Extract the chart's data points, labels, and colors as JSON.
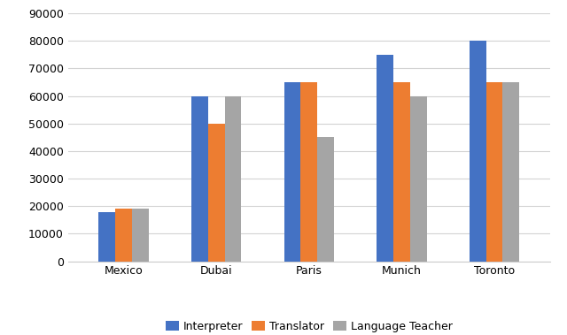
{
  "cities": [
    "Mexico",
    "Dubai",
    "Paris",
    "Munich",
    "Toronto"
  ],
  "interpreter": [
    18000,
    60000,
    65000,
    75000,
    80000
  ],
  "translator": [
    19000,
    50000,
    65000,
    65000,
    65000
  ],
  "language_teacher": [
    19000,
    60000,
    45000,
    60000,
    65000
  ],
  "bar_colors": {
    "interpreter": "#4472C4",
    "translator": "#ED7D31",
    "language_teacher": "#A5A5A5"
  },
  "legend_labels": [
    "Interpreter",
    "Translator",
    "Language Teacher"
  ],
  "ylim": [
    0,
    90000
  ],
  "yticks": [
    0,
    10000,
    20000,
    30000,
    40000,
    50000,
    60000,
    70000,
    80000,
    90000
  ],
  "background_color": "#FFFFFF",
  "grid_color": "#D3D3D3",
  "bar_width": 0.18,
  "figsize": [
    6.4,
    3.79
  ],
  "dpi": 100
}
